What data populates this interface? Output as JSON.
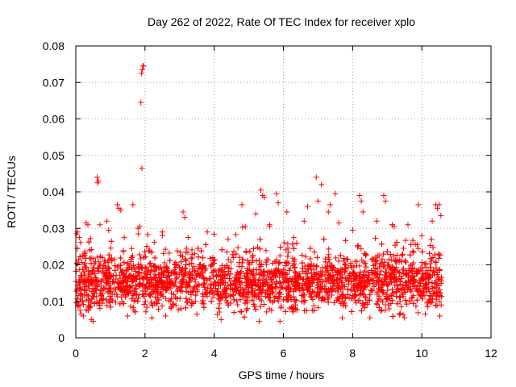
{
  "chart_data": {
    "type": "scatter",
    "title": "Day 262 of 2022, Rate Of TEC Index for receiver xplo",
    "xlabel": "GPS time / hours",
    "ylabel": "ROTI / TECUs",
    "xlim": [
      0,
      12
    ],
    "ylim": [
      0,
      0.08
    ],
    "xticks": [
      0,
      2,
      4,
      6,
      8,
      10,
      12
    ],
    "xtick_labels": [
      "0",
      "2",
      "4",
      "6",
      "8",
      "10",
      "12"
    ],
    "yticks": [
      0,
      0.01,
      0.02,
      0.03,
      0.04,
      0.05,
      0.06,
      0.07,
      0.08
    ],
    "ytick_labels": [
      "0",
      "0.01",
      "0.02",
      "0.03",
      "0.04",
      "0.05",
      "0.06",
      "0.07",
      "0.08"
    ],
    "grid": true,
    "marker": "+",
    "color": "#ff0000",
    "series": [
      {
        "name": "xplo",
        "points": [
          [
            0.02,
            0.0285
          ],
          [
            0.05,
            0.029
          ],
          [
            0.1,
            0.0275
          ],
          [
            0.03,
            0.0205
          ],
          [
            0.08,
            0.009
          ],
          [
            0.15,
            0.0065
          ],
          [
            0.22,
            0.006
          ],
          [
            0.3,
            0.0315
          ],
          [
            0.35,
            0.031
          ],
          [
            0.45,
            0.005
          ],
          [
            0.5,
            0.0045
          ],
          [
            0.62,
            0.044
          ],
          [
            0.63,
            0.0425
          ],
          [
            0.65,
            0.043
          ],
          [
            0.7,
            0.031
          ],
          [
            0.9,
            0.032
          ],
          [
            0.95,
            0.0295
          ],
          [
            1.2,
            0.0365
          ],
          [
            1.25,
            0.0355
          ],
          [
            1.3,
            0.035
          ],
          [
            1.4,
            0.0275
          ],
          [
            1.5,
            0.006
          ],
          [
            1.65,
            0.0365
          ],
          [
            1.8,
            0.03
          ],
          [
            1.85,
            0.0305
          ],
          [
            1.88,
            0.0645
          ],
          [
            1.9,
            0.0725
          ],
          [
            1.92,
            0.0735
          ],
          [
            1.94,
            0.0745
          ],
          [
            1.96,
            0.0745
          ],
          [
            1.91,
            0.0465
          ],
          [
            2.05,
            0.025
          ],
          [
            2.2,
            0.0055
          ],
          [
            2.5,
            0.029
          ],
          [
            2.6,
            0.006
          ],
          [
            3.1,
            0.0345
          ],
          [
            3.15,
            0.033
          ],
          [
            3.5,
            0.0065
          ],
          [
            3.8,
            0.029
          ],
          [
            4.2,
            0.005
          ],
          [
            4.4,
            0.027
          ],
          [
            4.8,
            0.0365
          ],
          [
            4.9,
            0.0305
          ],
          [
            5.2,
            0.034
          ],
          [
            5.35,
            0.0405
          ],
          [
            5.4,
            0.039
          ],
          [
            5.45,
            0.0385
          ],
          [
            5.3,
            0.0045
          ],
          [
            5.6,
            0.0305
          ],
          [
            5.8,
            0.0395
          ],
          [
            5.85,
            0.037
          ],
          [
            5.9,
            0.0045
          ],
          [
            6.1,
            0.0345
          ],
          [
            6.3,
            0.0275
          ],
          [
            6.6,
            0.032
          ],
          [
            6.7,
            0.036
          ],
          [
            6.95,
            0.044
          ],
          [
            7.0,
            0.0375
          ],
          [
            7.1,
            0.042
          ],
          [
            7.3,
            0.0345
          ],
          [
            7.35,
            0.0365
          ],
          [
            7.5,
            0.0395
          ],
          [
            7.6,
            0.0315
          ],
          [
            7.7,
            0.0055
          ],
          [
            8.0,
            0.0295
          ],
          [
            8.2,
            0.039
          ],
          [
            8.25,
            0.0375
          ],
          [
            8.3,
            0.0345
          ],
          [
            8.5,
            0.0055
          ],
          [
            8.7,
            0.032
          ],
          [
            8.9,
            0.039
          ],
          [
            8.95,
            0.0375
          ],
          [
            9.2,
            0.0305
          ],
          [
            9.5,
            0.0055
          ],
          [
            9.6,
            0.031
          ],
          [
            9.9,
            0.0365
          ],
          [
            10.0,
            0.028
          ],
          [
            10.1,
            0.0065
          ],
          [
            10.3,
            0.032
          ],
          [
            10.4,
            0.0365
          ],
          [
            10.45,
            0.0355
          ],
          [
            10.5,
            0.0365
          ],
          [
            10.55,
            0.0335
          ],
          [
            10.52,
            0.006
          ],
          [
            10.56,
            0.009
          ]
        ],
        "dense_band": {
          "x_range": [
            0.0,
            10.58
          ],
          "y_range": [
            0.006,
            0.027
          ],
          "center": 0.015,
          "approx_count": 3200
        }
      }
    ]
  }
}
